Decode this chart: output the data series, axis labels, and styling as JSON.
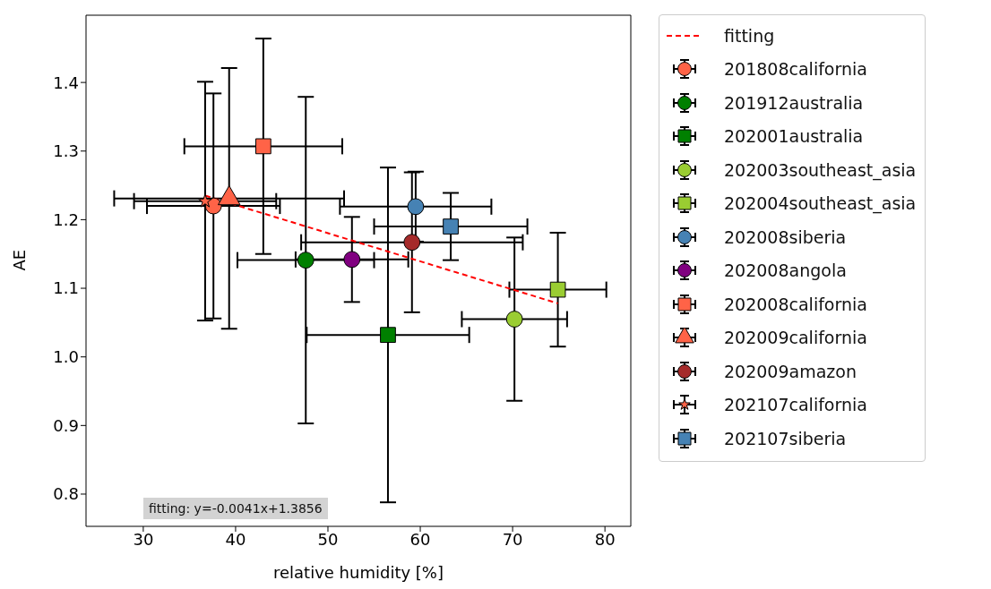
{
  "chart_data": {
    "type": "scatter",
    "xlabel": "relative humidity [%]",
    "ylabel": "AE",
    "xlim": [
      23.8,
      82.8
    ],
    "ylim": [
      0.753,
      1.498
    ],
    "xticks": [
      30,
      40,
      50,
      60,
      70,
      80
    ],
    "yticks": [
      0.8,
      0.9,
      {
        "value": 1.0,
        "label": "1.0"
      },
      1.1,
      1.2,
      1.3,
      1.4
    ],
    "legend": "right",
    "annotations": [
      "fitting: y=-0.0041x+1.3856"
    ],
    "series": [
      {
        "name": "fitting",
        "type": "line",
        "color": "#ff0000",
        "line_style": "dashed",
        "marker": "none",
        "x": [
          36.7,
          74.9
        ],
        "values": [
          1.235,
          1.078
        ]
      },
      {
        "name": "201808california",
        "color": "#ff6347",
        "marker": "circle",
        "x": [
          37.6
        ],
        "values": [
          1.22
        ],
        "errors": [
          0.164
        ],
        "xerrors": [
          7.2
        ]
      },
      {
        "name": "201912australia",
        "color": "#008000",
        "marker": "circle",
        "x": [
          47.6
        ],
        "values": [
          1.141
        ],
        "errors": [
          0.238
        ],
        "xerrors": [
          7.4
        ]
      },
      {
        "name": "202001australia",
        "color": "#008000",
        "marker": "square",
        "x": [
          56.5
        ],
        "values": [
          1.032
        ],
        "errors": [
          0.244
        ],
        "xerrors": [
          8.8
        ]
      },
      {
        "name": "202003southeast_asia",
        "color": "#9acd32",
        "marker": "circle",
        "x": [
          70.2
        ],
        "values": [
          1.055
        ],
        "errors": [
          0.119
        ],
        "xerrors": [
          5.7
        ]
      },
      {
        "name": "202004southeast_asia",
        "color": "#9acd32",
        "marker": "square",
        "x": [
          74.9
        ],
        "values": [
          1.098
        ],
        "errors": [
          0.083
        ],
        "xerrors": [
          5.25
        ]
      },
      {
        "name": "202008siberia",
        "color": "#4682b4",
        "marker": "circle",
        "x": [
          59.5
        ],
        "values": [
          1.219
        ],
        "errors": [
          0.051
        ],
        "xerrors": [
          8.2
        ]
      },
      {
        "name": "202008angola",
        "color": "#800080",
        "marker": "circle",
        "x": [
          52.6
        ],
        "values": [
          1.142
        ],
        "errors": [
          0.062
        ],
        "xerrors": [
          6.1
        ]
      },
      {
        "name": "202008california",
        "color": "#ff6347",
        "marker": "square",
        "x": [
          43.0
        ],
        "values": [
          1.307
        ],
        "errors": [
          0.157
        ],
        "xerrors": [
          8.55
        ]
      },
      {
        "name": "202009california",
        "color": "#ff6347",
        "marker": "triangle",
        "x": [
          39.3
        ],
        "values": [
          1.231
        ],
        "errors": [
          0.19
        ],
        "xerrors": [
          12.45
        ]
      },
      {
        "name": "202009amazon",
        "color": "#a52a2a",
        "marker": "circle",
        "x": [
          59.1
        ],
        "values": [
          1.167
        ],
        "errors": [
          0.102
        ],
        "xerrors": [
          12.0
        ]
      },
      {
        "name": "202107california",
        "color": "#ff6347",
        "marker": "star",
        "x": [
          36.7
        ],
        "values": [
          1.227
        ],
        "errors": [
          0.174
        ],
        "xerrors": [
          7.7
        ]
      },
      {
        "name": "202107siberia",
        "color": "#4682b4",
        "marker": "square",
        "x": [
          63.3
        ],
        "values": [
          1.19
        ],
        "errors": [
          0.049
        ],
        "xerrors": [
          8.3
        ]
      }
    ]
  }
}
